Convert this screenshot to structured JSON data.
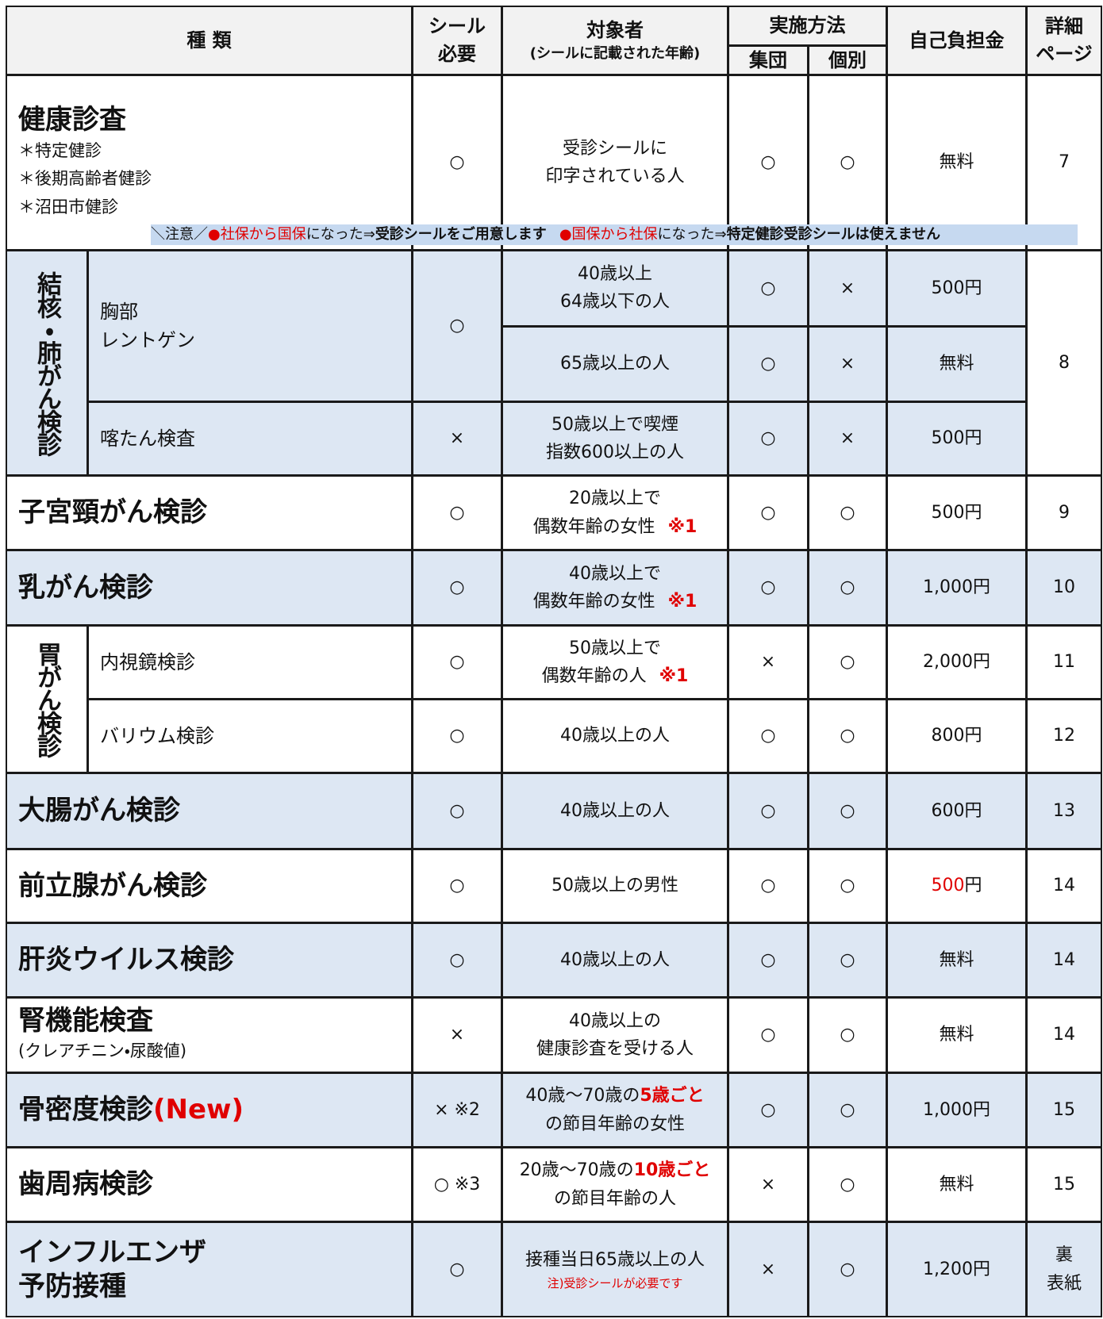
{
  "header": {
    "type": "種 類",
    "seal": [
      "シール",
      "必要"
    ],
    "target": "対象者",
    "target_note": "(シールに記載された年齢)",
    "method": "実施方法",
    "group": "集団",
    "individual": "個別",
    "cost": "自己負担金",
    "page": [
      "詳細",
      "ページ"
    ]
  },
  "notice": [
    "＼注意／",
    {
      "text": "●社保から国保",
      "style": "red"
    },
    "になった⇒",
    {
      "text": "受診シールをご用意します",
      "style": "bold"
    },
    {
      "text": "●国保から社保",
      "style": "red gap"
    },
    "になった⇒",
    {
      "text": "特定健診受診シールは使えません",
      "style": "bold"
    }
  ],
  "rows": [
    {
      "name": "健康診査",
      "items": [
        "＊特定健診",
        "＊後期高齢者健診",
        "＊沼田市健診"
      ],
      "seal": "○",
      "target": [
        "受診シールに",
        "印字されている人"
      ],
      "group": "○",
      "individual": "○",
      "cost": "無料",
      "page": "7"
    },
    {
      "name": "結核・肺がん検診",
      "page": "8",
      "subs": [
        {
          "name": [
            "胸部",
            "レントゲン"
          ],
          "seal": "○",
          "tiers": [
            {
              "target": [
                "40歳以上",
                "64歳以下の人"
              ],
              "group": "○",
              "individual": "×",
              "cost": "500円"
            },
            {
              "target": "65歳以上の人",
              "group": "○",
              "individual": "×",
              "cost": "無料"
            }
          ]
        },
        {
          "name": "喀たん検査",
          "seal": "×",
          "tiers": [
            {
              "target": [
                "50歳以上で喫煙",
                "指数600以上の人"
              ],
              "group": "○",
              "individual": "×",
              "cost": "500円"
            }
          ]
        }
      ]
    },
    {
      "name": "子宮頸がん検診",
      "seal": "○",
      "target": [
        "20歳以上で",
        [
          "偶数年齢の女性",
          {
            "text": "※1",
            "style": "red bold gap"
          }
        ]
      ],
      "group": "○",
      "individual": "○",
      "cost": "500円",
      "page": "9"
    },
    {
      "name": "乳がん検診",
      "seal": "○",
      "target": [
        "40歳以上で",
        [
          "偶数年齢の女性",
          {
            "text": "※1",
            "style": "red bold gap"
          }
        ]
      ],
      "group": "○",
      "individual": "○",
      "cost": "1,000円",
      "page": "10"
    },
    {
      "name": "胃がん検診",
      "subs": [
        {
          "name": "内視鏡検診",
          "seal": "○",
          "tiers": [
            {
              "target": [
                "50歳以上で",
                [
                  "偶数年齢の人",
                  {
                    "text": "※1",
                    "style": "red bold gap"
                  }
                ]
              ],
              "group": "×",
              "individual": "○",
              "cost": "2,000円",
              "page": "11"
            }
          ]
        },
        {
          "name": "バリウム検診",
          "seal": "○",
          "tiers": [
            {
              "target": "40歳以上の人",
              "group": "○",
              "individual": "○",
              "cost": "800円",
              "page": "12"
            }
          ]
        }
      ]
    },
    {
      "name": "大腸がん検診",
      "seal": "○",
      "target": "40歳以上の人",
      "group": "○",
      "individual": "○",
      "cost": "600円",
      "page": "13"
    },
    {
      "name": "前立腺がん検診",
      "seal": "○",
      "target": "50歳以上の男性",
      "group": "○",
      "individual": "○",
      "cost": [
        [
          {
            "text": "500",
            "style": "red"
          },
          "円"
        ]
      ],
      "page": "14"
    },
    {
      "name": "肝炎ウイルス検診",
      "seal": "○",
      "target": "40歳以上の人",
      "group": "○",
      "individual": "○",
      "cost": "無料",
      "page": "14"
    },
    {
      "name": "腎機能検査",
      "items": [
        "(クレアチニン・尿酸値)"
      ],
      "seal": "×",
      "target": [
        "40歳以上の",
        "健康診査を受ける人"
      ],
      "group": "○",
      "individual": "○",
      "cost": "無料",
      "page": "14"
    },
    {
      "name": [
        [
          "骨密度検診",
          {
            "text": "(New)",
            "style": "red"
          }
        ]
      ],
      "seal": "× ※2",
      "target": [
        [
          "40歳～70歳の",
          {
            "text": "5歳ごと",
            "style": "red bold"
          }
        ],
        "の節目年齢の女性"
      ],
      "group": "○",
      "individual": "○",
      "cost": "1,000円",
      "page": "15"
    },
    {
      "name": "歯周病検診",
      "seal": "○ ※3",
      "target": [
        [
          "20歳～70歳の",
          {
            "text": "10歳ごと",
            "style": "red bold"
          }
        ],
        "の節目年齢の人"
      ],
      "group": "×",
      "individual": "○",
      "cost": "無料",
      "page": "15"
    },
    {
      "name": [
        "インフルエンザ",
        "予防接種"
      ],
      "seal": "○",
      "target": "接種当日65歳以上の人",
      "target_note": "注)受診シールが必要です",
      "group": "×",
      "individual": "○",
      "cost": "1,200円",
      "page": [
        "裏",
        "表紙"
      ]
    }
  ]
}
